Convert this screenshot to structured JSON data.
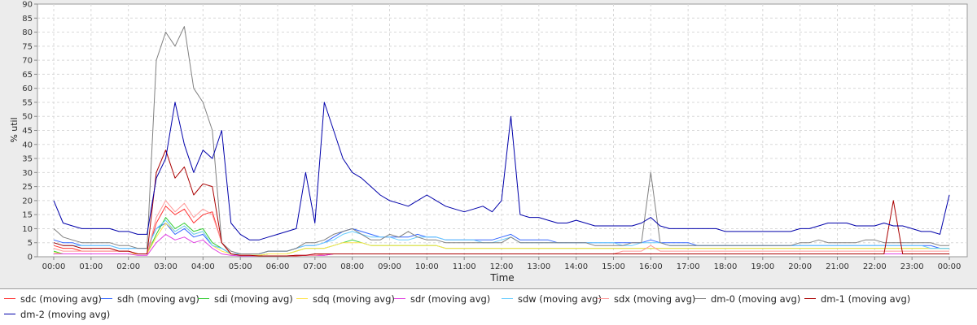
{
  "chart_data": {
    "type": "line",
    "xlabel": "Time",
    "ylabel": "% util",
    "xlim": [
      "00:00",
      "24:00"
    ],
    "ylim": [
      0,
      90
    ],
    "grid": true,
    "legend_placement": "bottom",
    "x_ticks": [
      "00:00",
      "01:00",
      "02:00",
      "03:00",
      "04:00",
      "05:00",
      "06:00",
      "07:00",
      "08:00",
      "09:00",
      "10:00",
      "11:00",
      "12:00",
      "13:00",
      "14:00",
      "15:00",
      "16:00",
      "17:00",
      "18:00",
      "19:00",
      "20:00",
      "21:00",
      "22:00",
      "23:00",
      "00:00"
    ],
    "y_ticks": [
      0,
      5,
      10,
      15,
      20,
      25,
      30,
      35,
      40,
      45,
      50,
      55,
      60,
      65,
      70,
      75,
      80,
      85,
      90
    ],
    "x_hours": [
      0,
      0.25,
      0.5,
      0.75,
      1,
      1.25,
      1.5,
      1.75,
      2,
      2.25,
      2.5,
      2.75,
      3,
      3.25,
      3.5,
      3.75,
      4,
      4.25,
      4.5,
      4.75,
      5,
      5.25,
      5.5,
      5.75,
      6,
      6.25,
      6.5,
      6.75,
      7,
      7.25,
      7.5,
      7.75,
      8,
      8.25,
      8.5,
      8.75,
      9,
      9.25,
      9.5,
      9.75,
      10,
      10.25,
      10.5,
      10.75,
      11,
      11.25,
      11.5,
      11.75,
      12,
      12.25,
      12.5,
      12.75,
      13,
      13.25,
      13.5,
      13.75,
      14,
      14.25,
      14.5,
      14.75,
      15,
      15.25,
      15.5,
      15.75,
      16,
      16.25,
      16.5,
      16.75,
      17,
      17.25,
      17.5,
      17.75,
      18,
      18.25,
      18.5,
      18.75,
      19,
      19.25,
      19.5,
      19.75,
      20,
      20.25,
      20.5,
      20.75,
      21,
      21.25,
      21.5,
      21.75,
      22,
      22.25,
      22.5,
      22.75,
      23,
      23.25,
      23.5,
      23.75,
      24
    ],
    "series": [
      {
        "name": "sdc (moving avg)",
        "color": "#ff3333",
        "values": [
          4,
          3,
          3,
          2,
          2,
          2,
          2,
          2,
          2,
          1,
          1,
          12,
          18,
          15,
          17,
          12,
          15,
          16,
          5,
          1,
          0.5,
          0.5,
          0.3,
          0.3,
          0.3,
          0.3,
          0.3,
          0.5,
          0.5,
          0.5,
          1,
          1,
          1,
          1,
          1,
          1,
          1,
          1,
          1,
          1,
          1,
          1,
          1,
          1,
          1,
          1,
          1,
          1,
          1,
          1,
          1,
          1,
          1,
          1,
          1,
          1,
          1,
          1,
          1,
          1,
          1,
          1,
          1,
          1,
          1,
          1,
          1,
          1,
          1,
          1,
          1,
          1,
          1,
          1,
          1,
          1,
          1,
          1,
          1,
          1,
          1,
          1,
          1,
          1,
          1,
          1,
          1,
          1,
          1,
          1,
          1,
          1,
          1,
          1,
          1,
          1,
          1
        ]
      },
      {
        "name": "sdh (moving avg)",
        "color": "#3366ff",
        "values": [
          6,
          5,
          5,
          4,
          4,
          4,
          4,
          3,
          3,
          3,
          3,
          10,
          12,
          8,
          10,
          7,
          8,
          4,
          3,
          1,
          1,
          1,
          1,
          2,
          2,
          2,
          3,
          4,
          4,
          5,
          7,
          9,
          10,
          9,
          8,
          7,
          7,
          7,
          7,
          8,
          7,
          7,
          6,
          6,
          6,
          6,
          6,
          6,
          7,
          8,
          6,
          6,
          6,
          6,
          5,
          5,
          5,
          5,
          5,
          5,
          5,
          5,
          5,
          5,
          6,
          5,
          5,
          5,
          5,
          4,
          4,
          4,
          4,
          4,
          4,
          4,
          4,
          4,
          4,
          4,
          4,
          4,
          4,
          4,
          4,
          4,
          4,
          4,
          4,
          4,
          4,
          4,
          4,
          4,
          4,
          3,
          3
        ]
      },
      {
        "name": "sdi (moving avg)",
        "color": "#33cc33",
        "values": [
          2,
          1,
          1,
          1,
          1,
          1,
          1,
          1,
          1,
          1,
          1,
          8,
          14,
          10,
          12,
          9,
          10,
          5,
          3,
          1,
          0.5,
          0.5,
          0.5,
          1,
          1,
          1,
          2,
          3,
          3,
          3,
          4,
          5,
          6,
          5,
          4,
          4,
          4,
          4,
          4,
          4,
          4,
          4,
          3,
          3,
          3,
          3,
          3,
          3,
          3,
          3,
          3,
          3,
          3,
          3,
          3,
          3,
          3,
          3,
          3,
          3,
          3,
          3,
          3,
          3,
          3,
          3,
          3,
          3,
          3,
          3,
          3,
          3,
          3,
          3,
          3,
          3,
          3,
          3,
          3,
          3,
          3,
          3,
          3,
          3,
          3,
          3,
          3,
          3,
          3,
          3,
          3,
          3,
          3,
          3,
          3,
          3,
          3
        ]
      },
      {
        "name": "sdq (moving avg)",
        "color": "#ffe44d",
        "values": [
          1.5,
          1,
          1,
          1,
          1,
          1,
          1,
          1,
          1,
          1,
          1,
          7,
          12,
          9,
          11,
          8,
          9,
          4,
          2,
          1,
          0.5,
          0.5,
          0.5,
          1,
          1,
          1,
          2,
          3,
          3,
          3,
          4,
          5,
          5,
          5,
          4,
          4,
          4,
          4,
          4,
          4,
          4,
          4,
          3,
          3,
          3,
          3,
          3,
          3,
          3,
          3,
          3,
          3,
          3,
          3,
          3,
          3,
          3,
          3,
          3,
          3,
          3,
          3,
          3,
          3,
          3,
          3,
          3,
          3,
          3,
          3,
          3,
          3,
          3,
          3,
          3,
          3,
          3,
          3,
          3,
          3,
          3,
          3,
          3,
          3,
          3,
          3,
          3,
          3,
          3,
          3,
          3,
          3,
          3,
          3,
          3,
          3,
          3
        ]
      },
      {
        "name": "sdr (moving avg)",
        "color": "#e040e0",
        "values": [
          1,
          1,
          1,
          1,
          1,
          1,
          1,
          1,
          1,
          0.5,
          0.5,
          5,
          8,
          6,
          7,
          5,
          6,
          3,
          1,
          0.5,
          0.3,
          0.3,
          0.3,
          0.3,
          0.3,
          0.3,
          0.5,
          0.5,
          0.5,
          0.5,
          1,
          1,
          1,
          1,
          1,
          1,
          1,
          1,
          1,
          1,
          1,
          1,
          1,
          1,
          1,
          1,
          1,
          1,
          1,
          1,
          1,
          1,
          1,
          1,
          1,
          1,
          1,
          1,
          1,
          1,
          1,
          1,
          1,
          1,
          1,
          1,
          1,
          1,
          1,
          1,
          1,
          1,
          1,
          1,
          1,
          1,
          1,
          1,
          1,
          1,
          1,
          1,
          1,
          1,
          1,
          1,
          1,
          1,
          1,
          1,
          1,
          1,
          1,
          1,
          1,
          1,
          1
        ]
      },
      {
        "name": "sdw (moving avg)",
        "color": "#66ccff",
        "values": [
          5,
          4,
          4,
          4,
          4,
          4,
          4,
          3,
          3,
          3,
          3,
          10,
          13,
          9,
          11,
          8,
          9,
          4,
          3,
          1,
          1,
          1,
          1,
          2,
          2,
          2,
          3,
          4,
          4,
          5,
          6,
          8,
          9,
          8,
          7,
          7,
          7,
          6,
          6,
          7,
          7,
          7,
          6,
          6,
          6,
          6,
          5,
          5,
          6,
          7,
          5,
          5,
          5,
          5,
          5,
          5,
          5,
          5,
          5,
          5,
          5,
          4,
          4,
          5,
          5,
          5,
          4,
          4,
          4,
          4,
          4,
          4,
          4,
          4,
          4,
          4,
          4,
          4,
          4,
          4,
          4,
          4,
          4,
          4,
          4,
          4,
          4,
          4,
          4,
          4,
          4,
          4,
          4,
          4,
          3,
          3,
          3
        ]
      },
      {
        "name": "sdx (moving avg)",
        "color": "#ff9999",
        "values": [
          3,
          2,
          2,
          2,
          2,
          2,
          2,
          2,
          2,
          1,
          1,
          14,
          20,
          16,
          19,
          14,
          17,
          15,
          5,
          1,
          0.5,
          0.5,
          0.3,
          0.3,
          0.3,
          0.3,
          0.5,
          0.5,
          0.5,
          1,
          1,
          1,
          1,
          1,
          1,
          1,
          1,
          1,
          1,
          1,
          1,
          1,
          1,
          1,
          1,
          1,
          1,
          1,
          1,
          1,
          1,
          1,
          1,
          1,
          1,
          1,
          1,
          1,
          1,
          1,
          1,
          2,
          2,
          2,
          4,
          2,
          2,
          2,
          2,
          2,
          2,
          2,
          2,
          2,
          2,
          2,
          2,
          2,
          2,
          2,
          2,
          2,
          2,
          2,
          2,
          2,
          2,
          2,
          2,
          2,
          2,
          2,
          2,
          2,
          2,
          2,
          2
        ]
      },
      {
        "name": "dm-0 (moving avg)",
        "color": "#808080",
        "values": [
          10,
          7,
          6,
          5,
          5,
          5,
          5,
          4,
          4,
          3,
          3,
          70,
          80,
          75,
          82,
          60,
          55,
          45,
          5,
          2,
          1,
          1,
          1,
          2,
          2,
          2,
          3,
          5,
          5,
          6,
          8,
          9,
          10,
          8,
          6,
          6,
          8,
          7,
          9,
          7,
          6,
          6,
          5,
          5,
          5,
          5,
          5,
          5,
          5,
          7,
          5,
          5,
          5,
          5,
          5,
          5,
          5,
          5,
          4,
          4,
          4,
          4,
          5,
          5,
          30,
          5,
          4,
          4,
          4,
          4,
          4,
          4,
          4,
          4,
          4,
          4,
          4,
          4,
          4,
          4,
          5,
          5,
          6,
          5,
          5,
          5,
          5,
          6,
          6,
          5,
          5,
          5,
          5,
          5,
          5,
          4,
          4
        ]
      },
      {
        "name": "dm-1 (moving avg)",
        "color": "#aa0000",
        "values": [
          5,
          4,
          4,
          3,
          3,
          3,
          3,
          2,
          2,
          1,
          1,
          30,
          38,
          28,
          32,
          22,
          26,
          25,
          5,
          1,
          0.5,
          0.5,
          0.3,
          0.3,
          0.3,
          0.3,
          0.5,
          0.5,
          1,
          1,
          1,
          1,
          1,
          1,
          1,
          1,
          1,
          1,
          1,
          1,
          1,
          1,
          1,
          1,
          1,
          1,
          1,
          1,
          1,
          1,
          1,
          1,
          1,
          1,
          1,
          1,
          1,
          1,
          1,
          1,
          1,
          1,
          1,
          1,
          1,
          1,
          1,
          1,
          1,
          1,
          1,
          1,
          1,
          1,
          1,
          1,
          1,
          1,
          1,
          1,
          1,
          1,
          1,
          1,
          1,
          1,
          1,
          1,
          1,
          1,
          20,
          1,
          1,
          1,
          1,
          1,
          1
        ]
      },
      {
        "name": "dm-2 (moving avg)",
        "color": "#0000aa",
        "values": [
          20,
          12,
          11,
          10,
          10,
          10,
          10,
          9,
          9,
          8,
          8,
          28,
          35,
          55,
          40,
          30,
          38,
          35,
          45,
          12,
          8,
          6,
          6,
          7,
          8,
          9,
          10,
          30,
          12,
          55,
          45,
          35,
          30,
          28,
          25,
          22,
          20,
          19,
          18,
          20,
          22,
          20,
          18,
          17,
          16,
          17,
          18,
          16,
          20,
          50,
          15,
          14,
          14,
          13,
          12,
          12,
          13,
          12,
          11,
          11,
          11,
          11,
          11,
          12,
          14,
          11,
          10,
          10,
          10,
          10,
          10,
          10,
          9,
          9,
          9,
          9,
          9,
          9,
          9,
          9,
          10,
          10,
          11,
          12,
          12,
          12,
          11,
          11,
          11,
          12,
          11,
          11,
          10,
          9,
          9,
          8,
          22
        ]
      }
    ]
  }
}
